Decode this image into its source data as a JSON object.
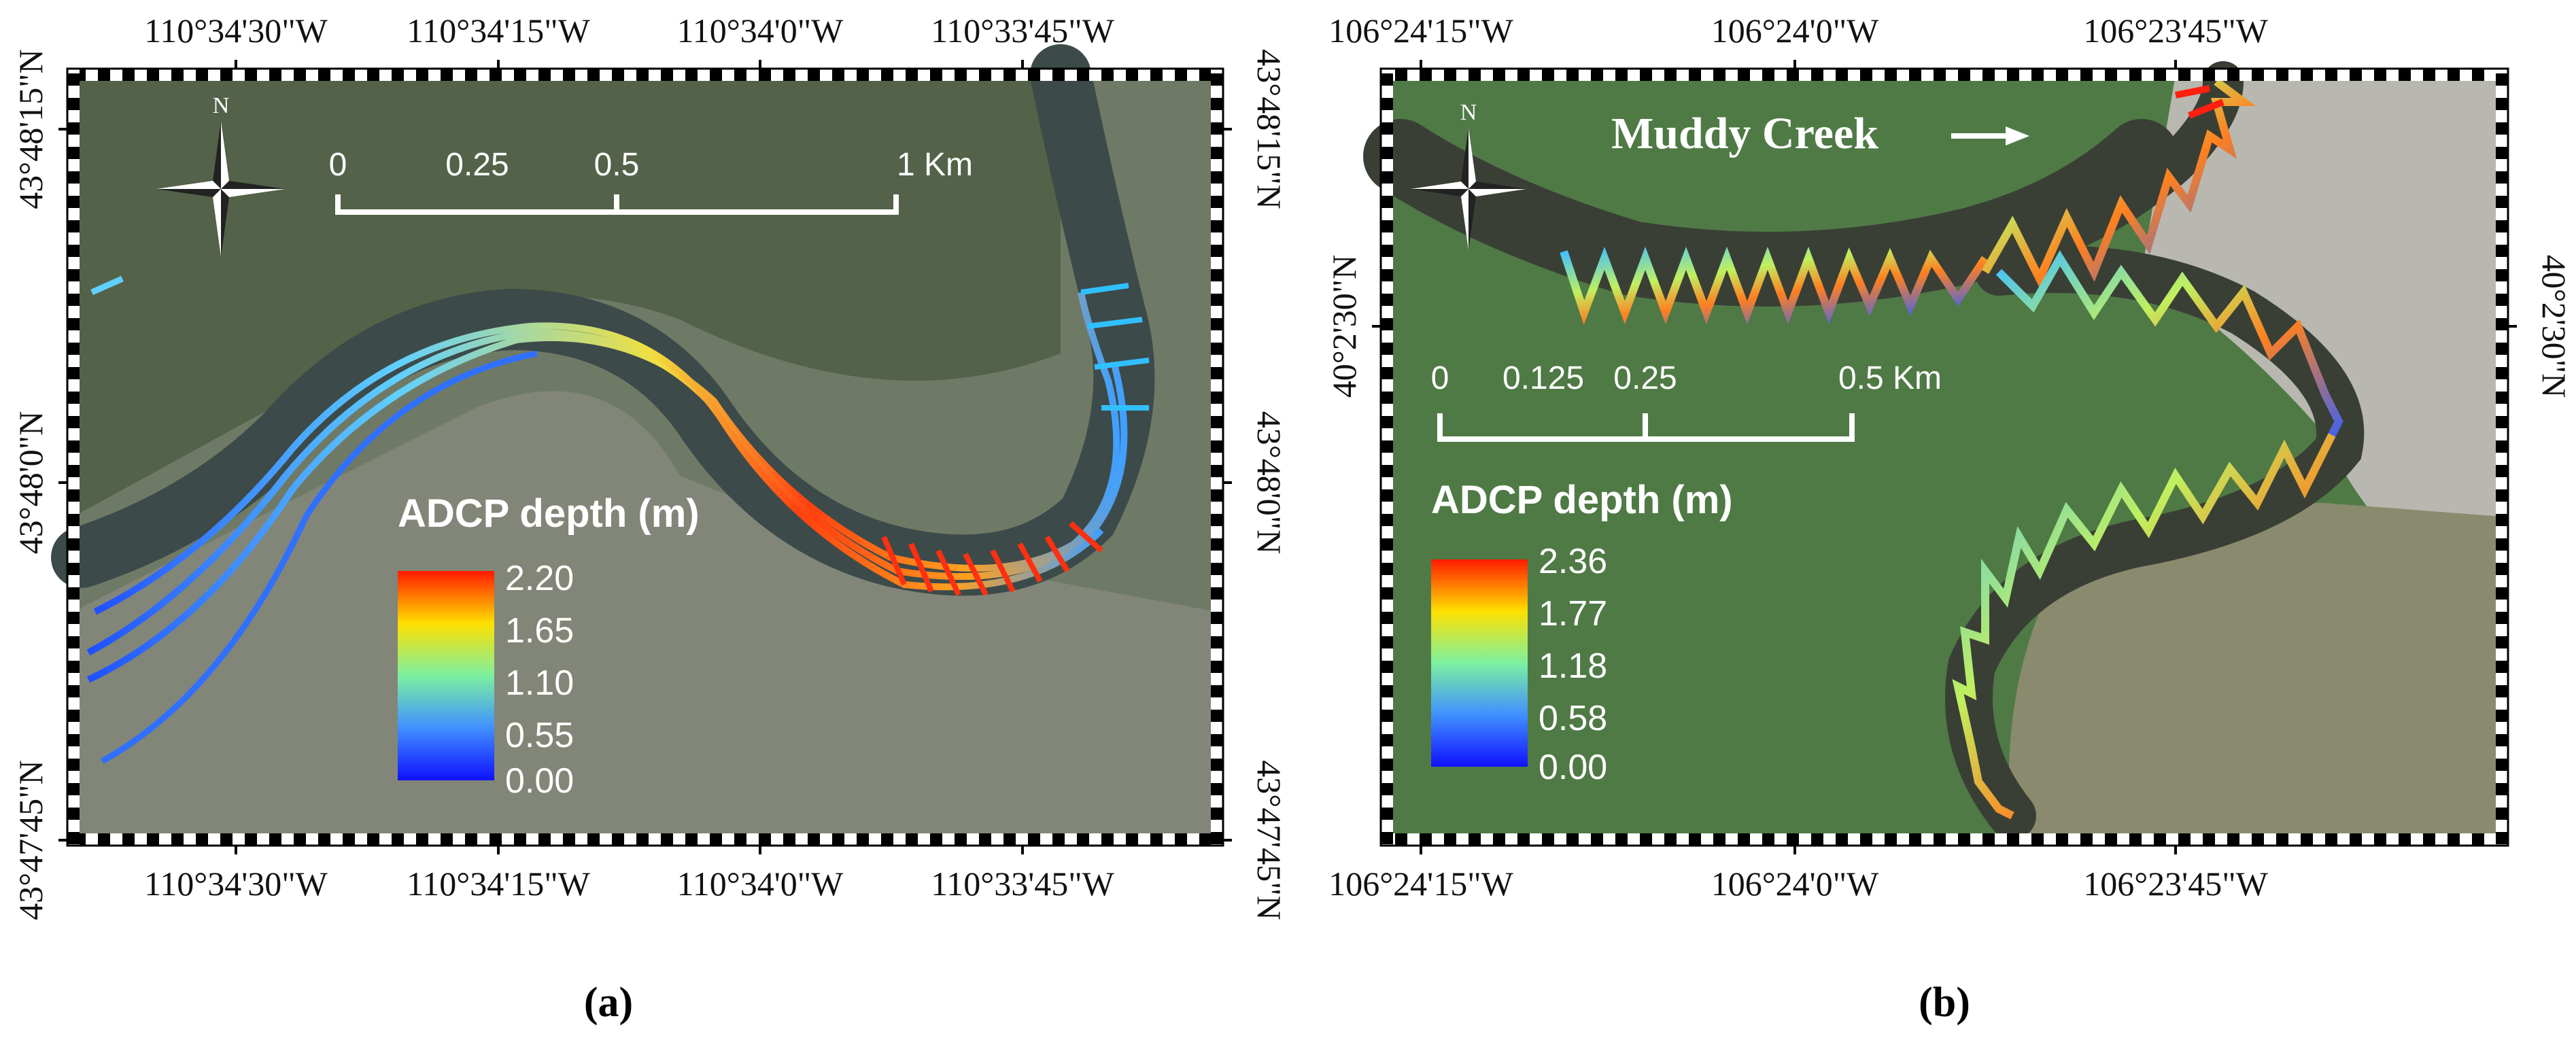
{
  "panels": [
    {
      "caption": "(a)",
      "top_lon_labels": [
        "110°34'30\"W",
        "110°34'15\"W",
        "110°34'0\"W",
        "110°33'45\"W"
      ],
      "bottom_lon_labels": [
        "110°34'30\"W",
        "110°34'15\"W",
        "110°34'0\"W",
        "110°33'45\"W"
      ],
      "left_lat_labels": [
        "43°48'15\"N",
        "43°48'0\"N",
        "43°47'45\"N"
      ],
      "right_lat_labels": [
        "43°48'15\"N",
        "43°48'0\"N",
        "43°47'45\"N"
      ],
      "north_label": "N",
      "scale_bar": {
        "ticks": [
          "0",
          "0.25",
          "0.5",
          "1 Km"
        ]
      },
      "legend": {
        "title": "ADCP depth (m)",
        "ticks": [
          "2.20",
          "1.65",
          "1.10",
          "0.55",
          "0.00"
        ],
        "colors": [
          "#ff1a00",
          "#ffe000",
          "#7df0a0",
          "#4090ff",
          "#1010ff"
        ]
      },
      "map_colors": {
        "background": "#6f7a66",
        "river": "#3d4a4a",
        "vegetation": "#4f5e43"
      }
    },
    {
      "caption": "(b)",
      "top_lon_labels": [
        "106°24'15\"W",
        "106°24'0\"W",
        "106°23'45\"W"
      ],
      "bottom_lon_labels": [
        "106°24'15\"W",
        "106°24'0\"W",
        "106°23'45\"W"
      ],
      "left_lat_labels": [
        "40°2'30\"N"
      ],
      "right_lat_labels": [
        "40°2'30\"N"
      ],
      "north_label": "N",
      "creek_label": "Muddy Creek",
      "scale_bar": {
        "ticks": [
          "0",
          "0.125",
          "0.25",
          "0.5 Km"
        ]
      },
      "legend": {
        "title": "ADCP depth (m)",
        "ticks": [
          "2.36",
          "1.77",
          "1.18",
          "0.58",
          "0.00"
        ],
        "colors": [
          "#ff1a00",
          "#ffe000",
          "#7df0a0",
          "#4090ff",
          "#1010ff"
        ]
      },
      "map_colors": {
        "background": "#4f7a45",
        "river": "#3a3f36",
        "field": "#8a8a6e",
        "bare": "#b8b8b0"
      }
    }
  ]
}
